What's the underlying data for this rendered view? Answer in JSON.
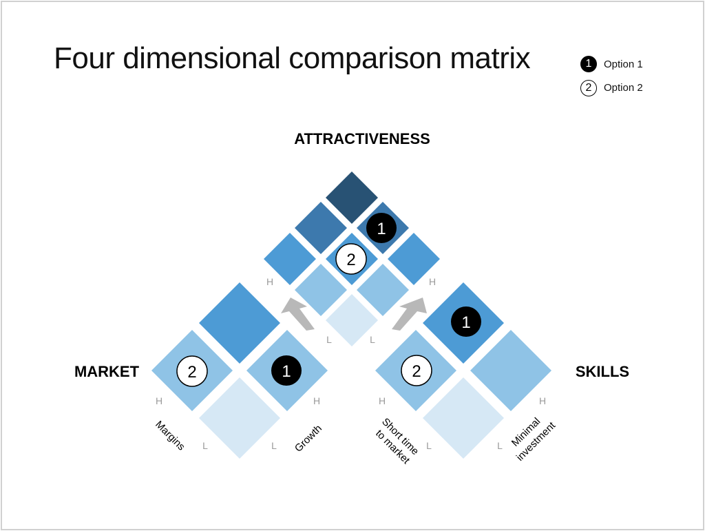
{
  "title": "Four dimensional comparison matrix",
  "legend": [
    {
      "marker": "1",
      "label": "Option 1",
      "style": "filled"
    },
    {
      "marker": "2",
      "label": "Option 2",
      "style": "hollow"
    }
  ],
  "headings": {
    "attractiveness": "ATTRACTIVENESS",
    "market": "MARKET",
    "skills": "SKILLS"
  },
  "scale": {
    "high": "H",
    "low": "L"
  },
  "axes": {
    "margins": "Margins",
    "growth": "Growth",
    "short_time_line1": "Short time",
    "short_time_line2": "to market",
    "minimal_line1": "Minimal",
    "minimal_line2": "investment"
  },
  "markers": {
    "option1": "1",
    "option2": "2"
  },
  "colors": {
    "darkest": "#285274",
    "dark": "#3d79ad",
    "medium": "#4d9bd5",
    "light": "#8fc3e6",
    "lightest": "#d6e8f5",
    "arrow": "#b8b8b8"
  }
}
